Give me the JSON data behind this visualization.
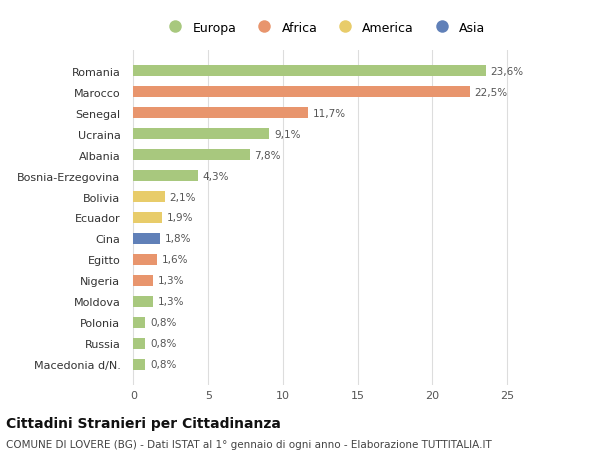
{
  "categories": [
    "Macedonia d/N.",
    "Russia",
    "Polonia",
    "Moldova",
    "Nigeria",
    "Egitto",
    "Cina",
    "Ecuador",
    "Bolivia",
    "Bosnia-Erzegovina",
    "Albania",
    "Ucraina",
    "Senegal",
    "Marocco",
    "Romania"
  ],
  "values": [
    0.8,
    0.8,
    0.8,
    1.3,
    1.3,
    1.6,
    1.8,
    1.9,
    2.1,
    4.3,
    7.8,
    9.1,
    11.7,
    22.5,
    23.6
  ],
  "labels": [
    "0,8%",
    "0,8%",
    "0,8%",
    "1,3%",
    "1,3%",
    "1,6%",
    "1,8%",
    "1,9%",
    "2,1%",
    "4,3%",
    "7,8%",
    "9,1%",
    "11,7%",
    "22,5%",
    "23,6%"
  ],
  "colors": [
    "#a8c87e",
    "#a8c87e",
    "#a8c87e",
    "#a8c87e",
    "#e8956d",
    "#e8956d",
    "#6080b8",
    "#e8cc6a",
    "#e8cc6a",
    "#a8c87e",
    "#a8c87e",
    "#a8c87e",
    "#e8956d",
    "#e8956d",
    "#a8c87e"
  ],
  "legend_labels": [
    "Europa",
    "Africa",
    "America",
    "Asia"
  ],
  "legend_colors": [
    "#a8c87e",
    "#e8956d",
    "#e8cc6a",
    "#6080b8"
  ],
  "title": "Cittadini Stranieri per Cittadinanza",
  "subtitle": "COMUNE DI LOVERE (BG) - Dati ISTAT al 1° gennaio di ogni anno - Elaborazione TUTTITALIA.IT",
  "xlim": [
    -0.5,
    26
  ],
  "xticks": [
    0,
    5,
    10,
    15,
    20,
    25
  ],
  "bg_color": "#ffffff",
  "plot_bg_color": "#ffffff",
  "bar_height": 0.55,
  "grid_color": "#dddddd",
  "label_fontsize": 7.5,
  "tick_fontsize": 8,
  "title_fontsize": 10,
  "subtitle_fontsize": 7.5
}
